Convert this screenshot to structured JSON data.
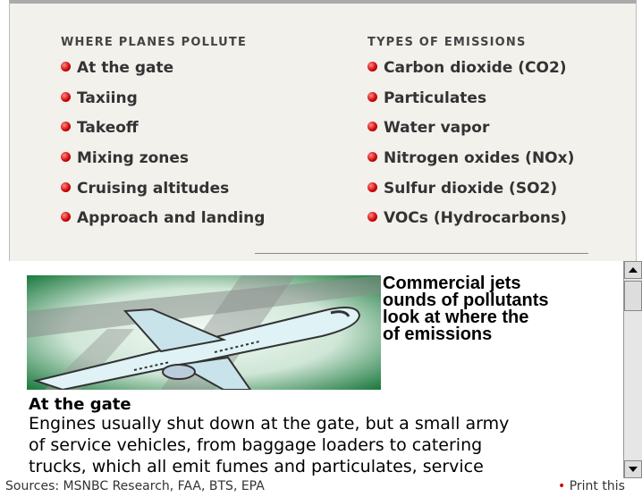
{
  "panel": {
    "columns": [
      {
        "heading": "WHERE PLANES POLLUTE",
        "items": [
          "At the gate",
          "Taxiing",
          "Takeoff",
          "Mixing zones",
          "Cruising altitudes",
          "Approach and landing"
        ]
      },
      {
        "heading": "TYPES OF EMISSIONS",
        "items": [
          "Carbon dioxide (CO2)",
          "Particulates",
          "Water vapor",
          "Nitrogen oxides (NOx)",
          "Sulfur dioxide (SO2)",
          "VOCs (Hydrocarbons)"
        ]
      }
    ]
  },
  "article": {
    "headline_lines": [
      "Commercial jets",
      "ounds of pollutants",
      "look at where the",
      "of emissions"
    ],
    "section_title": "At the gate",
    "body_lines": [
      "Engines usually shut down at the gate, but a small army",
      "of service vehicles, from baggage loaders to catering",
      "trucks, which all emit fumes and particulates, service"
    ]
  },
  "footer": {
    "sources": "Sources: MSNBC Research, FAA, BTS, EPA",
    "link": "Print this"
  }
}
